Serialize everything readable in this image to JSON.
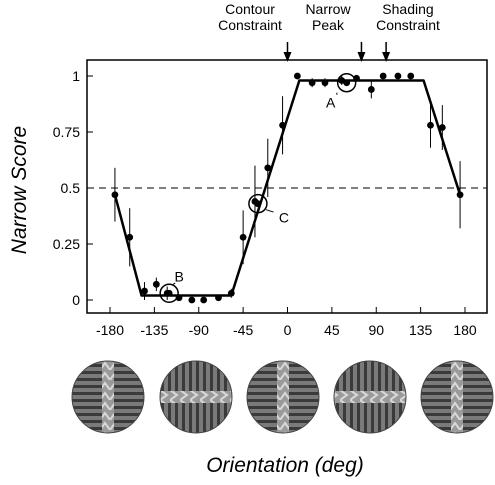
{
  "chart_data": {
    "type": "scatter",
    "xlabel": "Orientation (deg)",
    "ylabel": "Narrow Score",
    "xlim": [
      -180,
      180
    ],
    "ylim": [
      0,
      1
    ],
    "xticks": [
      -180,
      -135,
      -90,
      -45,
      0,
      45,
      90,
      135,
      180
    ],
    "xtick_labels": [
      "-180",
      "-135",
      "-90",
      "-45",
      "0",
      "45",
      "90",
      "135",
      "180"
    ],
    "yticks": [
      0,
      0.25,
      0.5,
      0.75,
      1
    ],
    "ytick_labels": [
      "0",
      "0.25",
      "0.5",
      "0.75",
      "1"
    ],
    "grid": false,
    "reference_line": 0.5,
    "points": [
      {
        "x": -175,
        "y": 0.47,
        "err": 0.12
      },
      {
        "x": -160,
        "y": 0.28,
        "err": 0.13
      },
      {
        "x": -145,
        "y": 0.04,
        "err": 0.04
      },
      {
        "x": -133,
        "y": 0.07,
        "err": 0.03
      },
      {
        "x": -122,
        "y": 0.03,
        "err": 0.03
      },
      {
        "x": -110,
        "y": 0.01,
        "err": 0
      },
      {
        "x": -97,
        "y": 0.0,
        "err": 0
      },
      {
        "x": -85,
        "y": 0.0,
        "err": 0
      },
      {
        "x": -70,
        "y": 0.01,
        "err": 0
      },
      {
        "x": -57,
        "y": 0.03,
        "err": 0.02
      },
      {
        "x": -45,
        "y": 0.28,
        "err": 0.12
      },
      {
        "x": -33,
        "y": 0.44,
        "err": 0.16
      },
      {
        "x": -20,
        "y": 0.59,
        "err": 0.13
      },
      {
        "x": -5,
        "y": 0.78,
        "err": 0.13
      },
      {
        "x": 10,
        "y": 1.0,
        "err": 0
      },
      {
        "x": 25,
        "y": 0.97,
        "err": 0.02
      },
      {
        "x": 38,
        "y": 0.97,
        "err": 0.02
      },
      {
        "x": 55,
        "y": 0.98,
        "err": 0.02
      },
      {
        "x": 70,
        "y": 0.99,
        "err": 0
      },
      {
        "x": 85,
        "y": 0.94,
        "err": 0.04
      },
      {
        "x": 97,
        "y": 1.0,
        "err": 0
      },
      {
        "x": 112,
        "y": 1.0,
        "err": 0
      },
      {
        "x": 125,
        "y": 1.0,
        "err": 0
      },
      {
        "x": 145,
        "y": 0.78,
        "err": 0.1
      },
      {
        "x": 157,
        "y": 0.77,
        "err": 0.1
      },
      {
        "x": 175,
        "y": 0.47,
        "err": 0.15
      }
    ],
    "fit_line": [
      {
        "x": -175,
        "y": 0.47
      },
      {
        "x": -148,
        "y": 0.02
      },
      {
        "x": -57,
        "y": 0.02
      },
      {
        "x": 12,
        "y": 0.98
      },
      {
        "x": 138,
        "y": 0.98
      },
      {
        "x": 175,
        "y": 0.47
      }
    ],
    "annotations": {
      "top": [
        {
          "text_lines": [
            "Contour",
            "Constraint"
          ],
          "x": 0
        },
        {
          "text_lines": [
            "Narrow",
            "Peak"
          ],
          "x": 75
        },
        {
          "text_lines": [
            "Shading",
            "Constraint"
          ],
          "x": 100
        }
      ],
      "points": [
        {
          "label": "A",
          "x": 60,
          "y": 0.97
        },
        {
          "label": "B",
          "x": -120,
          "y": 0.03
        },
        {
          "label": "C",
          "x": -30,
          "y": 0.43
        }
      ]
    },
    "stimuli": [
      {
        "name": "stimulus--180",
        "bar_orientation": "vertical"
      },
      {
        "name": "stimulus--90",
        "bar_orientation": "horizontal"
      },
      {
        "name": "stimulus-0",
        "bar_orientation": "vertical"
      },
      {
        "name": "stimulus-90",
        "bar_orientation": "horizontal"
      },
      {
        "name": "stimulus-180",
        "bar_orientation": "vertical"
      }
    ]
  }
}
